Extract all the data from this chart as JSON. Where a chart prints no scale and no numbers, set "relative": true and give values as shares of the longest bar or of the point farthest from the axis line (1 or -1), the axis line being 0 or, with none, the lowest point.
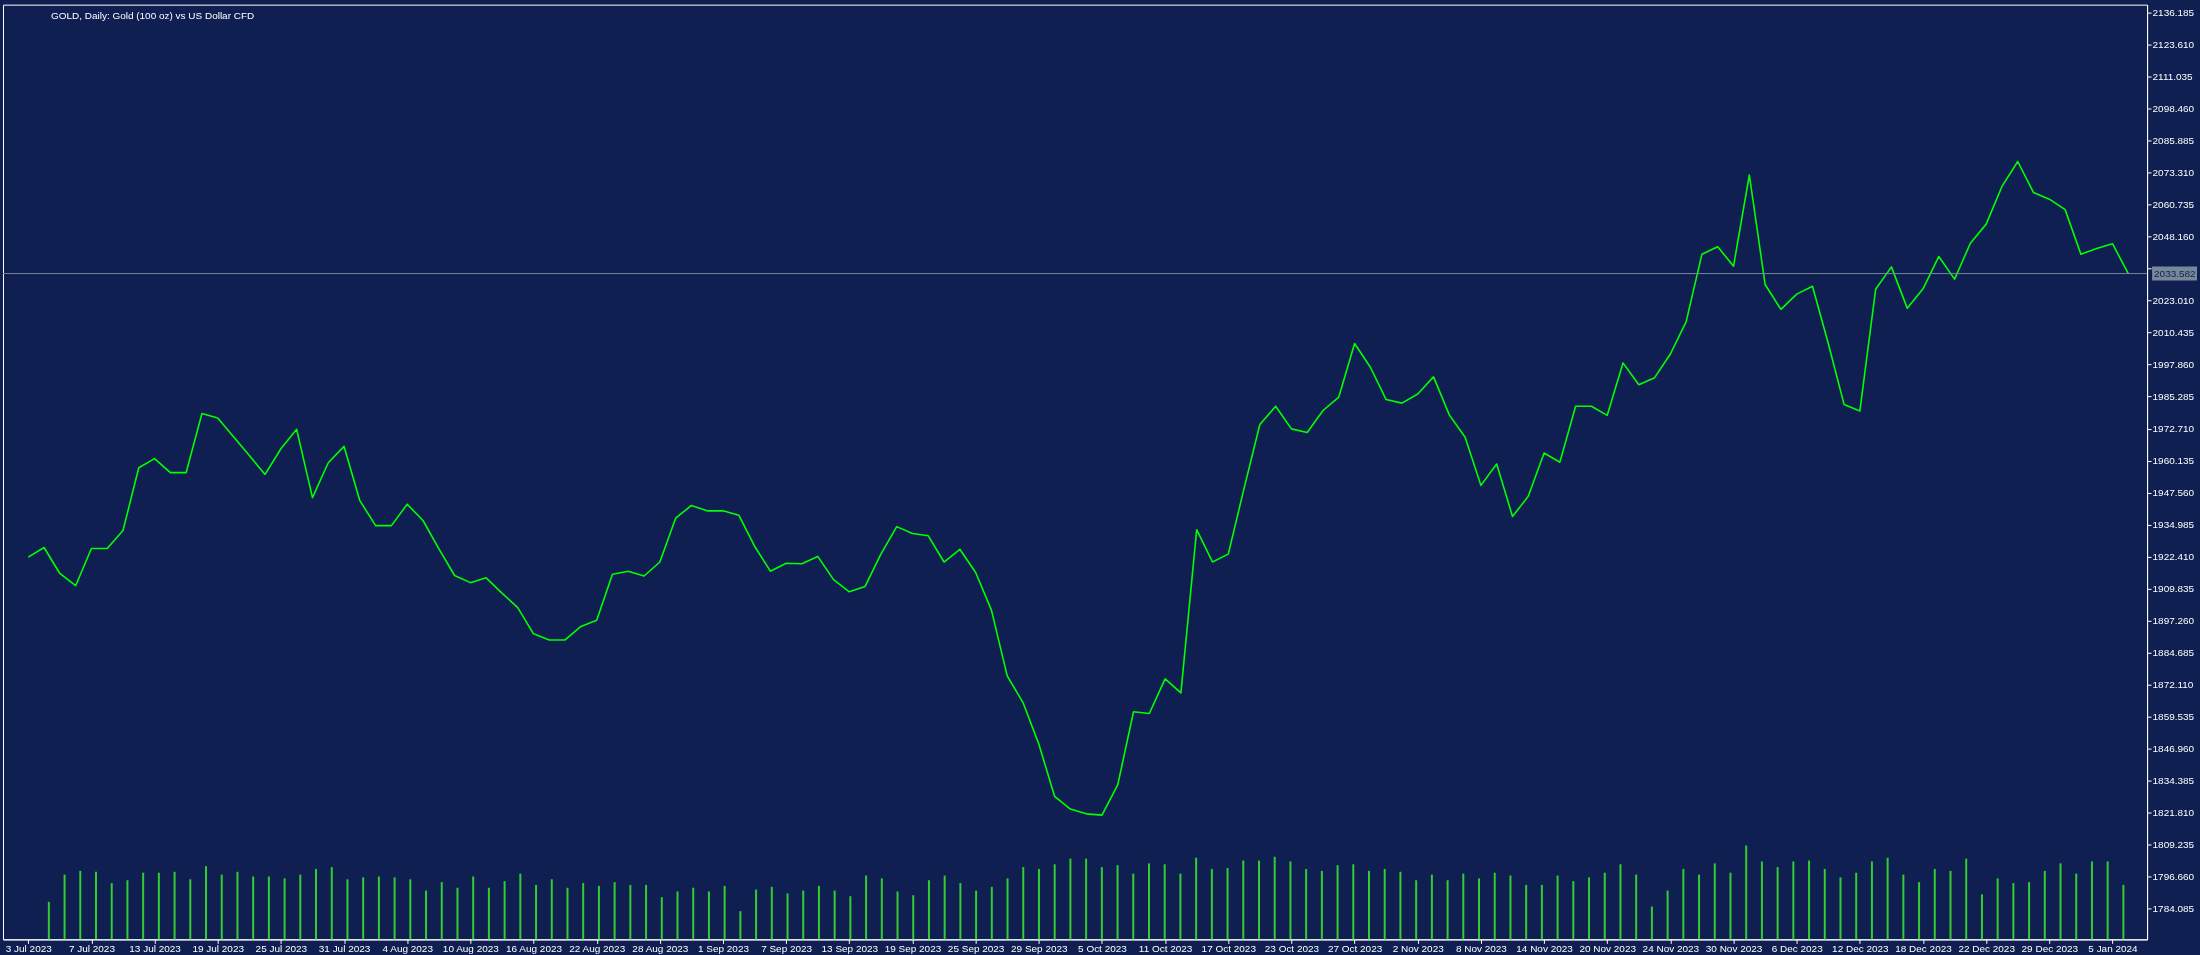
{
  "chart_data": [
    {
      "type": "line",
      "title": "GOLD, Daily: Gold (100 oz) vs US Dollar CFD",
      "categories": [
        "3 Jul 2023",
        null,
        null,
        null,
        "7 Jul 2023",
        null,
        null,
        null,
        "13 Jul 2023",
        null,
        null,
        null,
        "19 Jul 2023",
        null,
        null,
        null,
        "25 Jul 2023",
        null,
        null,
        null,
        "31 Jul 2023",
        null,
        null,
        null,
        "4 Aug 2023",
        null,
        null,
        null,
        "10 Aug 2023",
        null,
        null,
        null,
        "16 Aug 2023",
        null,
        null,
        null,
        "22 Aug 2023",
        null,
        null,
        null,
        "28 Aug 2023",
        null,
        null,
        null,
        "1 Sep 2023",
        null,
        null,
        null,
        "7 Sep 2023",
        null,
        null,
        null,
        "13 Sep 2023",
        null,
        null,
        null,
        "19 Sep 2023",
        null,
        null,
        null,
        "25 Sep 2023",
        null,
        null,
        null,
        "29 Sep 2023",
        null,
        null,
        null,
        "5 Oct 2023",
        null,
        null,
        null,
        "11 Oct 2023",
        null,
        null,
        null,
        "17 Oct 2023",
        null,
        null,
        null,
        "23 Oct 2023",
        null,
        null,
        null,
        "27 Oct 2023",
        null,
        null,
        null,
        "2 Nov 2023",
        null,
        null,
        null,
        "8 Nov 2023",
        null,
        null,
        null,
        "14 Nov 2023",
        null,
        null,
        null,
        "20 Nov 2023",
        null,
        null,
        null,
        "24 Nov 2023",
        null,
        null,
        null,
        "30 Nov 2023",
        null,
        null,
        null,
        "6 Dec 2023",
        null,
        null,
        null,
        "12 Dec 2023",
        null,
        null,
        null,
        "18 Dec 2023",
        null,
        null,
        null,
        "22 Dec 2023",
        null,
        null,
        null,
        "29 Dec 2023",
        null,
        null,
        null,
        "5 Jan 2024",
        null
      ],
      "color": "#00ff00",
      "values": [
        1922.2,
        1926.0,
        1915.8,
        1911.0,
        1925.6,
        1925.6,
        1932.7,
        1957.3,
        1960.9,
        1955.4,
        1955.4,
        1978.6,
        1976.9,
        1969.5,
        1962.1,
        1954.7,
        1964.8,
        1972.4,
        1945.6,
        1959.3,
        1965.7,
        1944.4,
        1934.6,
        1934.6,
        1943.0,
        1936.6,
        1925.6,
        1915.0,
        1912.2,
        1914.1,
        1908.1,
        1902.4,
        1892.1,
        1889.7,
        1889.7,
        1895.0,
        1897.4,
        1915.5,
        1916.7,
        1914.8,
        1920.3,
        1937.5,
        1942.5,
        1940.4,
        1940.4,
        1938.7,
        1926.5,
        1916.7,
        1919.8,
        1919.6,
        1922.5,
        1913.4,
        1908.6,
        1910.7,
        1923.4,
        1934.2,
        1931.5,
        1930.6,
        1920.3,
        1925.3,
        1916.2,
        1901.4,
        1875.6,
        1865.1,
        1848.8,
        1828.3,
        1823.3,
        1821.4,
        1820.9,
        1832.8,
        1861.5,
        1860.8,
        1874.4,
        1868.9,
        1933.0,
        1920.3,
        1923.4,
        1949.2,
        1974.3,
        1981.5,
        1972.6,
        1971.2,
        1979.8,
        1985.1,
        2006.1,
        1996.8,
        1984.1,
        1982.7,
        1986.3,
        1993.0,
        1978.1,
        1969.3,
        1950.4,
        1958.8,
        1938.2,
        1946.1,
        1963.1,
        1959.5,
        1981.5,
        1981.5,
        1977.9,
        1998.5,
        1989.9,
        1992.7,
        2002.0,
        2014.7,
        2041.2,
        2044.1,
        2036.5,
        2072.3,
        2029.3,
        2019.5,
        2025.5,
        2028.6,
        2006.1,
        1982.2,
        1979.6,
        2027.4,
        2036.2,
        2020.0,
        2027.6,
        2040.3,
        2031.4,
        2045.5,
        2053.0,
        2067.8,
        2077.6,
        2065.4,
        2062.8,
        2058.7,
        2041.2,
        2043.4,
        2045.3,
        2033.6
      ],
      "ylim": [
        1772.1,
        2139.2
      ],
      "yticks": [
        {
          "value": 2136.185,
          "label": "2136.185"
        },
        {
          "value": 2123.61,
          "label": "2123.610"
        },
        {
          "value": 2111.035,
          "label": "2111.035"
        },
        {
          "value": 2098.46,
          "label": "2098.460"
        },
        {
          "value": 2085.885,
          "label": "2085.885"
        },
        {
          "value": 2073.31,
          "label": "2073.310"
        },
        {
          "value": 2060.735,
          "label": "2060.735"
        },
        {
          "value": 2048.16,
          "label": "2048.160"
        },
        {
          "value": 2035.585,
          "label": null
        },
        {
          "value": 2023.01,
          "label": "2023.010"
        },
        {
          "value": 2010.435,
          "label": "2010.435"
        },
        {
          "value": 1997.86,
          "label": "1997.860"
        },
        {
          "value": 1985.285,
          "label": "1985.285"
        },
        {
          "value": 1972.71,
          "label": "1972.710"
        },
        {
          "value": 1960.135,
          "label": "1960.135"
        },
        {
          "value": 1947.56,
          "label": "1947.560"
        },
        {
          "value": 1934.985,
          "label": "1934.985"
        },
        {
          "value": 1922.41,
          "label": "1922.410"
        },
        {
          "value": 1909.835,
          "label": "1909.835"
        },
        {
          "value": 1897.26,
          "label": "1897.260"
        },
        {
          "value": 1884.685,
          "label": "1884.685"
        },
        {
          "value": 1872.11,
          "label": "1872.110"
        },
        {
          "value": 1859.535,
          "label": "1859.535"
        },
        {
          "value": 1846.96,
          "label": "1846.960"
        },
        {
          "value": 1834.385,
          "label": "1834.385"
        },
        {
          "value": 1821.81,
          "label": "1821.810"
        },
        {
          "value": 1809.235,
          "label": "1809.235"
        },
        {
          "value": 1796.66,
          "label": "1796.660"
        },
        {
          "value": 1784.085,
          "label": "1784.085"
        }
      ],
      "ref_lines": [
        {
          "axis": "y",
          "value": 2033.582,
          "label": "2033.582",
          "color": "#778899"
        }
      ],
      "grid": false
    },
    {
      "type": "bar",
      "relative": true,
      "color": "#32cd32",
      "categories": [
        null,
        null,
        null,
        null,
        null,
        null,
        null,
        null,
        null,
        null,
        null,
        null,
        null,
        null,
        null,
        null,
        null,
        null,
        null,
        null,
        null,
        null,
        null,
        null,
        null,
        null,
        null,
        null,
        null,
        null,
        null,
        null,
        null,
        null,
        null,
        null,
        null,
        null,
        null,
        null,
        null,
        null,
        null,
        null,
        null,
        null,
        null,
        null,
        null,
        null,
        null,
        null,
        null,
        null,
        null,
        null,
        null,
        null,
        null,
        null,
        null,
        null,
        null,
        null,
        null,
        null,
        null,
        null,
        null,
        null,
        null,
        null,
        null,
        null,
        null,
        null,
        null,
        null,
        null,
        null,
        null,
        null,
        null,
        null,
        null,
        null,
        null,
        null,
        null,
        null,
        null,
        null,
        null,
        null,
        null,
        null,
        null,
        null,
        null,
        null,
        null,
        null,
        null,
        null,
        null,
        null,
        null,
        null,
        null,
        null,
        null,
        null,
        null,
        null,
        null,
        null,
        null,
        null,
        null,
        null,
        null,
        null,
        null,
        null,
        null,
        null,
        null,
        null,
        null,
        null,
        null,
        null,
        null,
        null
      ],
      "values": [
        null,
        0.4,
        0.69,
        0.73,
        0.72,
        0.6,
        0.63,
        0.71,
        0.71,
        0.72,
        0.64,
        0.78,
        0.69,
        0.72,
        0.67,
        0.67,
        0.65,
        0.69,
        0.75,
        0.77,
        0.64,
        0.66,
        0.67,
        0.66,
        0.64,
        0.52,
        0.61,
        0.55,
        0.67,
        0.55,
        0.62,
        0.7,
        0.58,
        0.64,
        0.55,
        0.6,
        0.57,
        0.61,
        0.58,
        0.58,
        0.45,
        0.51,
        0.55,
        0.51,
        0.57,
        0.3,
        0.53,
        0.56,
        0.49,
        0.52,
        0.57,
        0.52,
        0.46,
        0.68,
        0.65,
        0.51,
        0.47,
        0.63,
        0.68,
        0.6,
        0.52,
        0.56,
        0.65,
        0.77,
        0.75,
        0.8,
        0.86,
        0.86,
        0.77,
        0.79,
        0.7,
        0.81,
        0.8,
        0.7,
        0.87,
        0.75,
        0.76,
        0.84,
        0.84,
        0.88,
        0.83,
        0.75,
        0.73,
        0.79,
        0.8,
        0.73,
        0.75,
        0.72,
        0.63,
        0.69,
        0.63,
        0.7,
        0.65,
        0.71,
        0.68,
        0.58,
        0.58,
        0.68,
        0.62,
        0.66,
        0.71,
        0.8,
        0.69,
        0.35,
        0.52,
        0.75,
        0.69,
        0.81,
        0.71,
        1,
        0.83,
        0.77,
        0.83,
        0.84,
        0.75,
        0.66,
        0.71,
        0.83,
        0.87,
        0.69,
        0.61,
        0.75,
        0.73,
        0.86,
        0.48,
        0.65,
        0.6,
        0.61,
        0.73,
        0.81,
        0.7,
        0.83,
        0.83,
        0.58
      ]
    }
  ]
}
